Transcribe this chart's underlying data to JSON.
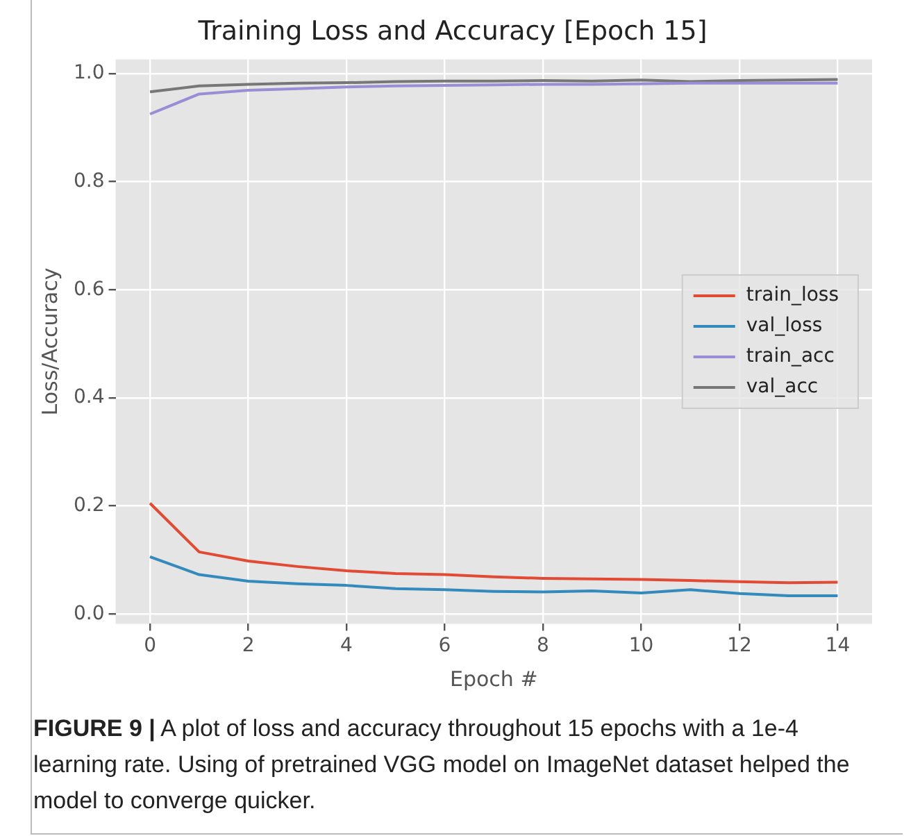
{
  "chart_data": {
    "type": "line",
    "title": "Training Loss and Accuracy [Epoch 15]",
    "xlabel": "Epoch #",
    "ylabel": "Loss/Accuracy",
    "x": [
      0,
      1,
      2,
      3,
      4,
      5,
      6,
      7,
      8,
      9,
      10,
      11,
      12,
      13,
      14
    ],
    "series": [
      {
        "name": "train_loss",
        "color": "#e24a33",
        "values": [
          0.205,
          0.115,
          0.098,
          0.088,
          0.08,
          0.075,
          0.073,
          0.069,
          0.066,
          0.065,
          0.064,
          0.062,
          0.06,
          0.058,
          0.059
        ]
      },
      {
        "name": "val_loss",
        "color": "#348abd",
        "values": [
          0.106,
          0.073,
          0.061,
          0.056,
          0.053,
          0.047,
          0.045,
          0.042,
          0.041,
          0.043,
          0.039,
          0.045,
          0.038,
          0.034,
          0.034
        ]
      },
      {
        "name": "train_acc",
        "color": "#988ed5",
        "values": [
          0.925,
          0.962,
          0.969,
          0.972,
          0.975,
          0.977,
          0.978,
          0.979,
          0.98,
          0.98,
          0.981,
          0.982,
          0.982,
          0.982,
          0.982
        ]
      },
      {
        "name": "val_acc",
        "color": "#777777",
        "values": [
          0.966,
          0.977,
          0.98,
          0.982,
          0.983,
          0.985,
          0.986,
          0.986,
          0.987,
          0.986,
          0.988,
          0.985,
          0.987,
          0.988,
          0.989
        ]
      }
    ],
    "xlim": [
      -0.7,
      14.7
    ],
    "xticks": [
      0,
      2,
      4,
      6,
      8,
      10,
      12,
      14
    ],
    "ylim": [
      -0.018,
      1.026
    ],
    "yticks": [
      {
        "value": 0,
        "label": "0.0"
      },
      {
        "value": 0.2,
        "label": "0.2"
      },
      {
        "value": 0.4,
        "label": "0.4"
      },
      {
        "value": 0.6,
        "label": "0.6"
      },
      {
        "value": 0.8,
        "label": "0.8"
      },
      {
        "value": 1,
        "label": "1.0"
      }
    ],
    "grid": true,
    "legend": "right",
    "marker": "none",
    "line_style": "solid",
    "annotations": [
      "FIGURE 9 | A plot of loss and accuracy throughout 15 epochs with a 1e-4 learning rate. Using of pretrained VGG model on ImageNet dataset helped the model to converge quicker."
    ]
  }
}
